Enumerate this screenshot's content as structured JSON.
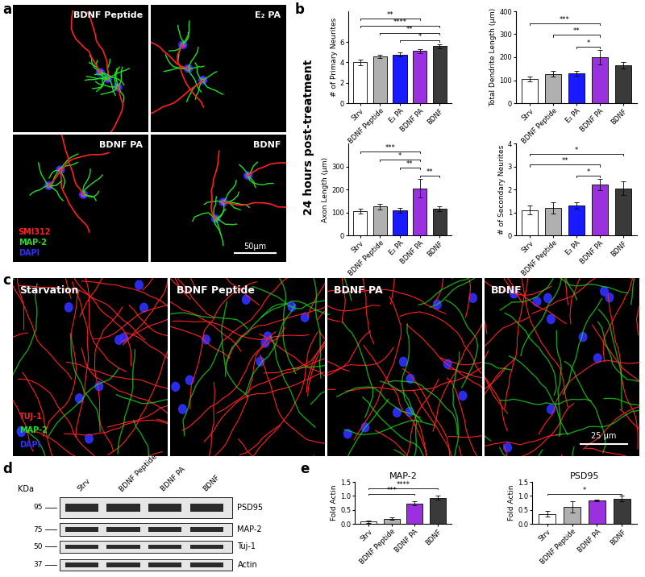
{
  "panel_labels": [
    "a",
    "b",
    "c",
    "d",
    "e"
  ],
  "images_a": {
    "tiles": [
      "BDNF Peptide",
      "E₂ PA",
      "BDNF PA",
      "BDNF"
    ],
    "stains": [
      {
        "name": "SMI312",
        "color": "#ff2020"
      },
      {
        "name": "MAP-2",
        "color": "#20e020"
      },
      {
        "name": "DAPI",
        "color": "#3030ff"
      }
    ],
    "scale_bar": "50μm"
  },
  "side_label": "24 hours post-treatment",
  "chart_data": [
    {
      "type": "bar",
      "y_label": "# of Primary Neurites",
      "categories": [
        "Strv",
        "BDNF Peptide",
        "E₂ PA",
        "BDNF PA",
        "BDNF"
      ],
      "values": [
        4.0,
        4.55,
        4.75,
        5.1,
        5.6
      ],
      "errors": [
        0.25,
        0.15,
        0.2,
        0.2,
        0.2
      ],
      "colors": [
        "#ffffff",
        "#b0b0b0",
        "#1a1aff",
        "#9b30e0",
        "#3a3a3a"
      ],
      "ylim": [
        0,
        9
      ],
      "yticks": [
        0,
        2,
        4,
        6
      ],
      "significance": [
        {
          "from": 2,
          "to": 4,
          "label": "*"
        },
        {
          "from": 1,
          "to": 4,
          "label": "**"
        },
        {
          "from": 0,
          "to": 4,
          "label": "****"
        },
        {
          "from": 0,
          "to": 3,
          "label": "**"
        }
      ]
    },
    {
      "type": "bar",
      "y_label": "Total Dendrite Length (µm)",
      "categories": [
        "Strv",
        "BDNF Peptide",
        "E₂ PA",
        "BDNF PA",
        "BDNF"
      ],
      "values": [
        105,
        128,
        130,
        200,
        165
      ],
      "errors": [
        10,
        12,
        10,
        30,
        15
      ],
      "colors": [
        "#ffffff",
        "#b0b0b0",
        "#1a1aff",
        "#9b30e0",
        "#3a3a3a"
      ],
      "ylim": [
        0,
        400
      ],
      "yticks": [
        0,
        100,
        200,
        300,
        400
      ],
      "significance": [
        {
          "from": 2,
          "to": 3,
          "label": "*"
        },
        {
          "from": 1,
          "to": 3,
          "label": "**"
        },
        {
          "from": 0,
          "to": 3,
          "label": "***"
        }
      ]
    },
    {
      "type": "bar",
      "y_label": "Axon Length (µm)",
      "categories": [
        "Strv",
        "BDNF Peptide",
        "E₂ PA",
        "BDNF PA",
        "BDNF"
      ],
      "values": [
        105,
        125,
        110,
        205,
        115
      ],
      "errors": [
        10,
        12,
        10,
        40,
        10
      ],
      "colors": [
        "#ffffff",
        "#b0b0b0",
        "#1a1aff",
        "#9b30e0",
        "#3a3a3a"
      ],
      "ylim": [
        0,
        400
      ],
      "yticks": [
        0,
        100,
        200,
        300
      ],
      "significance": [
        {
          "from": 3,
          "to": 4,
          "label": "**"
        },
        {
          "from": 2,
          "to": 3,
          "label": "**"
        },
        {
          "from": 1,
          "to": 3,
          "label": "*"
        },
        {
          "from": 0,
          "to": 3,
          "label": "***"
        }
      ]
    },
    {
      "type": "bar",
      "y_label": "# of Secondary Neurites",
      "categories": [
        "Strv",
        "BDNF Peptide",
        "E₂ PA",
        "BDNF PA",
        "BDNF"
      ],
      "values": [
        1.1,
        1.2,
        1.3,
        2.2,
        2.05
      ],
      "errors": [
        0.2,
        0.25,
        0.15,
        0.25,
        0.3
      ],
      "colors": [
        "#ffffff",
        "#b0b0b0",
        "#1a1aff",
        "#9b30e0",
        "#3a3a3a"
      ],
      "ylim": [
        0,
        4
      ],
      "yticks": [
        0,
        1,
        2,
        3,
        4
      ],
      "significance": [
        {
          "from": 2,
          "to": 3,
          "label": "*"
        },
        {
          "from": 0,
          "to": 3,
          "label": "**"
        },
        {
          "from": 0,
          "to": 4,
          "label": "*"
        }
      ]
    },
    {
      "type": "bar",
      "title": "MAP-2",
      "y_label": "Fold Actin",
      "categories": [
        "Strv",
        "BDNF Peptide",
        "BDNF PA",
        "BDNF"
      ],
      "values": [
        0.08,
        0.18,
        0.73,
        0.93
      ],
      "errors": [
        0.04,
        0.05,
        0.07,
        0.07
      ],
      "colors": [
        "#ffffff",
        "#b0b0b0",
        "#9b30e0",
        "#3a3a3a"
      ],
      "ylim": [
        0,
        1.5
      ],
      "yticks": [
        {
          "value": 0,
          "label": "0.0"
        },
        {
          "value": 0.5,
          "label": "0.5"
        },
        {
          "value": 1.0,
          "label": "1.0"
        },
        {
          "value": 1.5,
          "label": "1.5"
        }
      ],
      "significance": [
        {
          "from": 0,
          "to": 2,
          "label": "***"
        },
        {
          "from": 0,
          "to": 3,
          "label": "****"
        }
      ]
    },
    {
      "type": "bar",
      "title": "PSD95",
      "y_label": "Fold Actin",
      "categories": [
        "Strv",
        "BDNF Peptide",
        "BDNF PA",
        "BDNF"
      ],
      "values": [
        0.36,
        0.6,
        0.84,
        0.9
      ],
      "errors": [
        0.1,
        0.2,
        0.02,
        0.1
      ],
      "colors": [
        "#ffffff",
        "#b0b0b0",
        "#9b30e0",
        "#3a3a3a"
      ],
      "ylim": [
        0,
        1.5
      ],
      "yticks": [
        {
          "value": 0,
          "label": "0.0"
        },
        {
          "value": 0.5,
          "label": "0.5"
        },
        {
          "value": 1.0,
          "label": "1.0"
        },
        {
          "value": 1.5,
          "label": "1.5"
        }
      ],
      "significance": [
        {
          "from": 0,
          "to": 3,
          "label": "*"
        }
      ]
    }
  ],
  "images_c": {
    "tiles": [
      "Starvation",
      "BDNF Peptide",
      "BDNF PA",
      "BDNF"
    ],
    "stains": [
      {
        "name": "TUJ-1",
        "color": "#ff2020"
      },
      {
        "name": "MAP-2",
        "color": "#20e020"
      },
      {
        "name": "DAPI",
        "color": "#3030ff"
      }
    ],
    "scale_bar": "25 μm"
  },
  "blot": {
    "unit": "KDa",
    "markers": [
      95,
      75,
      50,
      37
    ],
    "lanes": [
      "Strv",
      "BDNF Peptide",
      "BDNF PA",
      "BDNF"
    ],
    "bands": [
      "PSD95",
      "MAP-2",
      "Tuj-1",
      "Actin"
    ]
  }
}
